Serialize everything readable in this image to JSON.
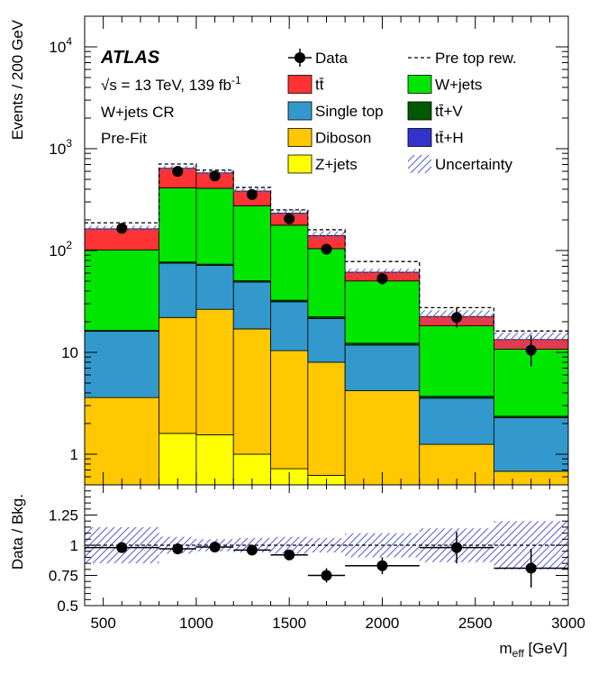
{
  "chart_data": {
    "type": "bar",
    "experiment": "ATLAS",
    "energy_label": "√s = 13 TeV, 139 fb",
    "lumi_exponent": "-1",
    "region_label": "W+jets CR",
    "fit_label": "Pre-Fit",
    "bin_edges": [
      400,
      800,
      1000,
      1200,
      1400,
      1600,
      1800,
      2200,
      2600,
      3000
    ],
    "stack_order": [
      "zjets",
      "diboson",
      "singletop",
      "ttV",
      "wjets",
      "ttH",
      "ttbar"
    ],
    "series": [
      {
        "key": "zjets",
        "name": "Z+jets",
        "color": "#ffff00",
        "values": [
          0,
          1.6,
          1.55,
          1.0,
          0.72,
          0.62,
          0,
          0,
          0
        ]
      },
      {
        "key": "diboson",
        "name": "Diboson",
        "color": "#ffc800",
        "values": [
          3.6,
          20.4,
          24.95,
          16.0,
          9.68,
          7.38,
          4.2,
          1.25,
          0.68
        ]
      },
      {
        "key": "singletop",
        "name": "Single top",
        "color": "#3399cc",
        "values": [
          12.5,
          53,
          45,
          32,
          21,
          13.5,
          7.6,
          2.3,
          1.6
        ]
      },
      {
        "key": "ttV",
        "name": "tt̄+V",
        "color": "#005900",
        "values": [
          0.32,
          2.2,
          2.0,
          1.5,
          1.1,
          0.85,
          0.5,
          0.15,
          0.08
        ]
      },
      {
        "key": "wjets",
        "name": "W+jets",
        "color": "#00e600",
        "values": [
          85,
          335,
          335,
          225,
          145,
          82,
          38,
          14.5,
          8.4
        ]
      },
      {
        "key": "ttH",
        "name": "tt̄+H",
        "color": "#3333cc",
        "values": [
          0,
          0.3,
          0.3,
          0.25,
          0.1,
          0.05,
          0,
          0,
          0
        ]
      },
      {
        "key": "ttbar",
        "name": "tt̄",
        "color": "#ff3333",
        "values": [
          62,
          230,
          170,
          108,
          55,
          36,
          11,
          4.3,
          2.6
        ]
      }
    ],
    "pre_top_rew": {
      "name": "Pre top rew.",
      "values": [
        187,
        707,
        616,
        417,
        251,
        160,
        78,
        27.5,
        16.2
      ]
    },
    "data": {
      "name": "Data",
      "x": [
        600,
        900,
        1100,
        1300,
        1500,
        1700,
        2000,
        2400,
        2800
      ],
      "values": [
        165,
        600,
        540,
        355,
        205,
        103,
        53,
        22,
        10.5
      ],
      "err_lo": [
        13,
        25,
        23,
        19,
        14,
        10,
        7,
        4.5,
        3.2
      ],
      "err_hi": [
        13,
        25,
        23,
        19,
        14,
        10,
        7,
        5.5,
        4.2
      ]
    },
    "uncertainty": {
      "name": "Uncertainty",
      "rel": [
        0.07,
        0.06,
        0.06,
        0.06,
        0.08,
        0.1,
        0.08,
        0.15,
        0.17
      ]
    },
    "ratio": {
      "values": [
        0.98,
        0.97,
        0.985,
        0.96,
        0.92,
        0.75,
        0.83,
        0.98,
        0.81
      ],
      "err": [
        0.02,
        0.02,
        0.03,
        0.03,
        0.04,
        0.06,
        0.07,
        0.13,
        0.16
      ],
      "band": [
        0.15,
        0.07,
        0.05,
        0.06,
        0.07,
        0.06,
        0.1,
        0.14,
        0.2
      ],
      "ylim": [
        0.5,
        1.5
      ],
      "yticks": [
        0.5,
        0.75,
        1,
        1.25
      ],
      "yticklabels": [
        "0.5",
        "0.75",
        "1",
        "1.25"
      ]
    },
    "main_ylim": [
      0.5,
      20000
    ],
    "main_yticks": [
      {
        "v": 10000,
        "base": "10",
        "exp": "4"
      },
      {
        "v": 1000,
        "base": "10",
        "exp": "3"
      },
      {
        "v": 100,
        "base": "10",
        "exp": "2"
      },
      {
        "v": 10,
        "base": "10",
        "exp": ""
      },
      {
        "v": 1,
        "base": "1",
        "exp": ""
      }
    ],
    "xlim": [
      400,
      3000
    ],
    "xticks": [
      500,
      1000,
      1500,
      2000,
      2500,
      3000
    ],
    "ylabel": "Events / 200 GeV",
    "ratio_ylabel": "Data / Bkg.",
    "xlabel_main": "m",
    "xlabel_sub": "eff",
    "xlabel_unit": "[GeV]",
    "legend": {
      "col1": [
        {
          "label": "Data",
          "kind": "data"
        },
        {
          "label": "tt̄",
          "kind": "fill",
          "color": "#ff3333"
        },
        {
          "label": "Single top",
          "kind": "fill",
          "color": "#3399cc"
        },
        {
          "label": "Diboson",
          "kind": "fill",
          "color": "#ffc800"
        },
        {
          "label": "Z+jets",
          "kind": "fill",
          "color": "#ffff00"
        }
      ],
      "col2": [
        {
          "label": "Pre top rew.",
          "kind": "dash"
        },
        {
          "label": "W+jets",
          "kind": "fill",
          "color": "#00e600"
        },
        {
          "label": "tt̄+V",
          "kind": "fill",
          "color": "#005900"
        },
        {
          "label": "tt̄+H",
          "kind": "fill",
          "color": "#3333cc"
        },
        {
          "label": "Uncertainty",
          "kind": "hatch"
        }
      ]
    }
  }
}
